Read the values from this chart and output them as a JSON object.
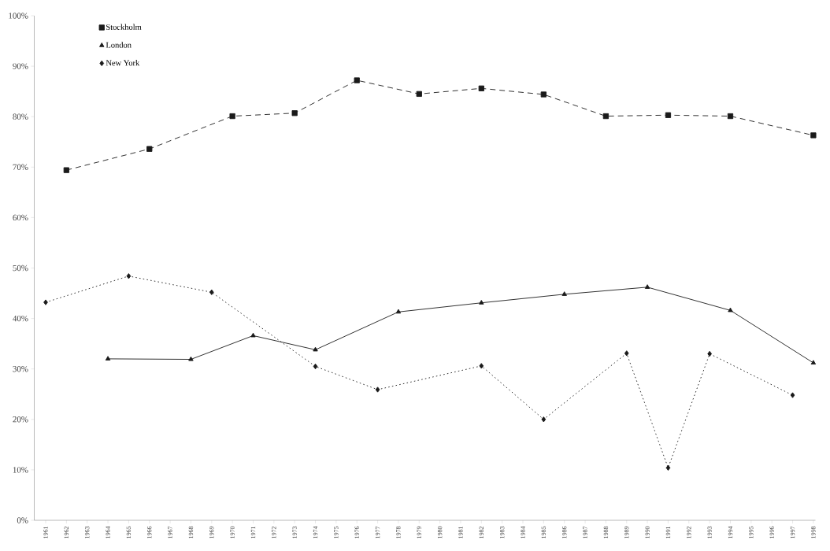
{
  "chart_data": {
    "type": "line",
    "categories": [
      "1961",
      "1962",
      "1963",
      "1964",
      "1965",
      "1966",
      "1967",
      "1968",
      "1969",
      "1970",
      "1971",
      "1972",
      "1973",
      "1974",
      "1975",
      "1976",
      "1977",
      "1978",
      "1979",
      "1980",
      "1981",
      "1982",
      "1983",
      "1984",
      "1985",
      "1986",
      "1987",
      "1988",
      "1989",
      "1990",
      "1991",
      "1992",
      "1993",
      "1994",
      "1995",
      "1996",
      "1997",
      "1998"
    ],
    "series": [
      {
        "name": "Stockholm",
        "color": "#1a1a1a",
        "marker": "square",
        "line_style": "dashed",
        "values": [
          null,
          69.4,
          null,
          null,
          null,
          73.6,
          null,
          null,
          null,
          80.1,
          null,
          null,
          80.7,
          null,
          null,
          87.2,
          null,
          null,
          84.5,
          null,
          null,
          85.6,
          null,
          null,
          84.4,
          null,
          null,
          80.1,
          null,
          null,
          80.3,
          null,
          null,
          80.1,
          null,
          null,
          null,
          76.3
        ]
      },
      {
        "name": "London",
        "color": "#1a1a1a",
        "marker": "triangle",
        "line_style": "solid",
        "values": [
          null,
          null,
          null,
          32,
          null,
          null,
          null,
          31.9,
          null,
          null,
          36.6,
          null,
          null,
          33.8,
          null,
          null,
          null,
          41.3,
          null,
          null,
          null,
          43.1,
          null,
          null,
          null,
          44.8,
          null,
          null,
          null,
          46.2,
          null,
          null,
          null,
          41.6,
          null,
          null,
          null,
          31.2
        ]
      },
      {
        "name": "New York",
        "color": "#1a1a1a",
        "marker": "diamond",
        "line_style": "dotted",
        "values": [
          43.2,
          null,
          null,
          null,
          48.4,
          null,
          null,
          null,
          45.2,
          null,
          null,
          null,
          null,
          30.5,
          null,
          null,
          25.9,
          null,
          null,
          null,
          null,
          30.6,
          null,
          null,
          20,
          null,
          null,
          null,
          33.1,
          null,
          10.4,
          null,
          33,
          null,
          null,
          null,
          24.8,
          null
        ]
      }
    ],
    "ylim": [
      0,
      100
    ],
    "yticks": [
      {
        "value": 0,
        "label": "0%"
      },
      {
        "value": 10,
        "label": "10%"
      },
      {
        "value": 20,
        "label": "20%"
      },
      {
        "value": 30,
        "label": "30%"
      },
      {
        "value": 40,
        "label": "40%"
      },
      {
        "value": 50,
        "label": "50%"
      },
      {
        "value": 60,
        "label": "60%"
      },
      {
        "value": 70,
        "label": "70%"
      },
      {
        "value": 80,
        "label": "80%"
      },
      {
        "value": 90,
        "label": "90%"
      },
      {
        "value": 100,
        "label": "100%"
      }
    ],
    "grid": false,
    "legend": "top left"
  }
}
